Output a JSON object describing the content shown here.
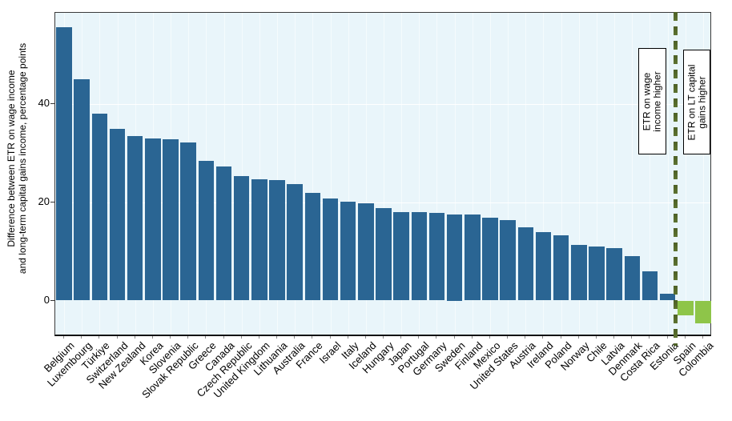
{
  "chart_data": {
    "type": "bar",
    "title": "",
    "ylabel_line1": "Difference between ETR on wage income",
    "ylabel_line2": "and long-term capital gains income, percentage points",
    "yticks": [
      0,
      20,
      40
    ],
    "ylim": [
      -7.4,
      58.5
    ],
    "grid": "white gridlines on pale blue panel",
    "legend_position": "none",
    "categories": [
      "Belgium",
      "Luxembourg",
      "Türkiye",
      "Switzerland",
      "New Zealand",
      "Korea",
      "Slovenia",
      "Slovak Republic",
      "Greece",
      "Canada",
      "Czech Republic",
      "United Kingdom",
      "Lithuania",
      "Australia",
      "France",
      "Israel",
      "Italy",
      "Iceland",
      "Hungary",
      "Japan",
      "Portugal",
      "Germany",
      "Sweden",
      "Finland",
      "Mexico",
      "United States",
      "Austria",
      "Ireland",
      "Poland",
      "Norway",
      "Chile",
      "Latvia",
      "Denmark",
      "Costa Rica",
      "Estonia",
      "Spain",
      "Colombia"
    ],
    "values": [
      55.6,
      44.9,
      37.9,
      34.8,
      33.4,
      33.0,
      32.7,
      32.1,
      28.3,
      27.3,
      25.3,
      24.7,
      24.5,
      23.7,
      21.9,
      20.7,
      20.1,
      19.8,
      18.7,
      17.9,
      17.9,
      17.8,
      17.5,
      17.4,
      16.9,
      16.4,
      14.8,
      13.9,
      13.3,
      11.3,
      10.9,
      10.6,
      9.0,
      5.9,
      1.4,
      -3.0,
      -4.7
    ],
    "bar_color_positive": "#2a6593",
    "bar_color_negative": "#8ec549",
    "divider_after_category": "Estonia",
    "divider_color": "#4d6026",
    "panel_background": "#e9f5fa",
    "annotations": [
      {
        "line1": "ETR on wage",
        "line2": "income higher"
      },
      {
        "line1": "ETR on LT capital",
        "line2": "gains higher"
      }
    ]
  }
}
